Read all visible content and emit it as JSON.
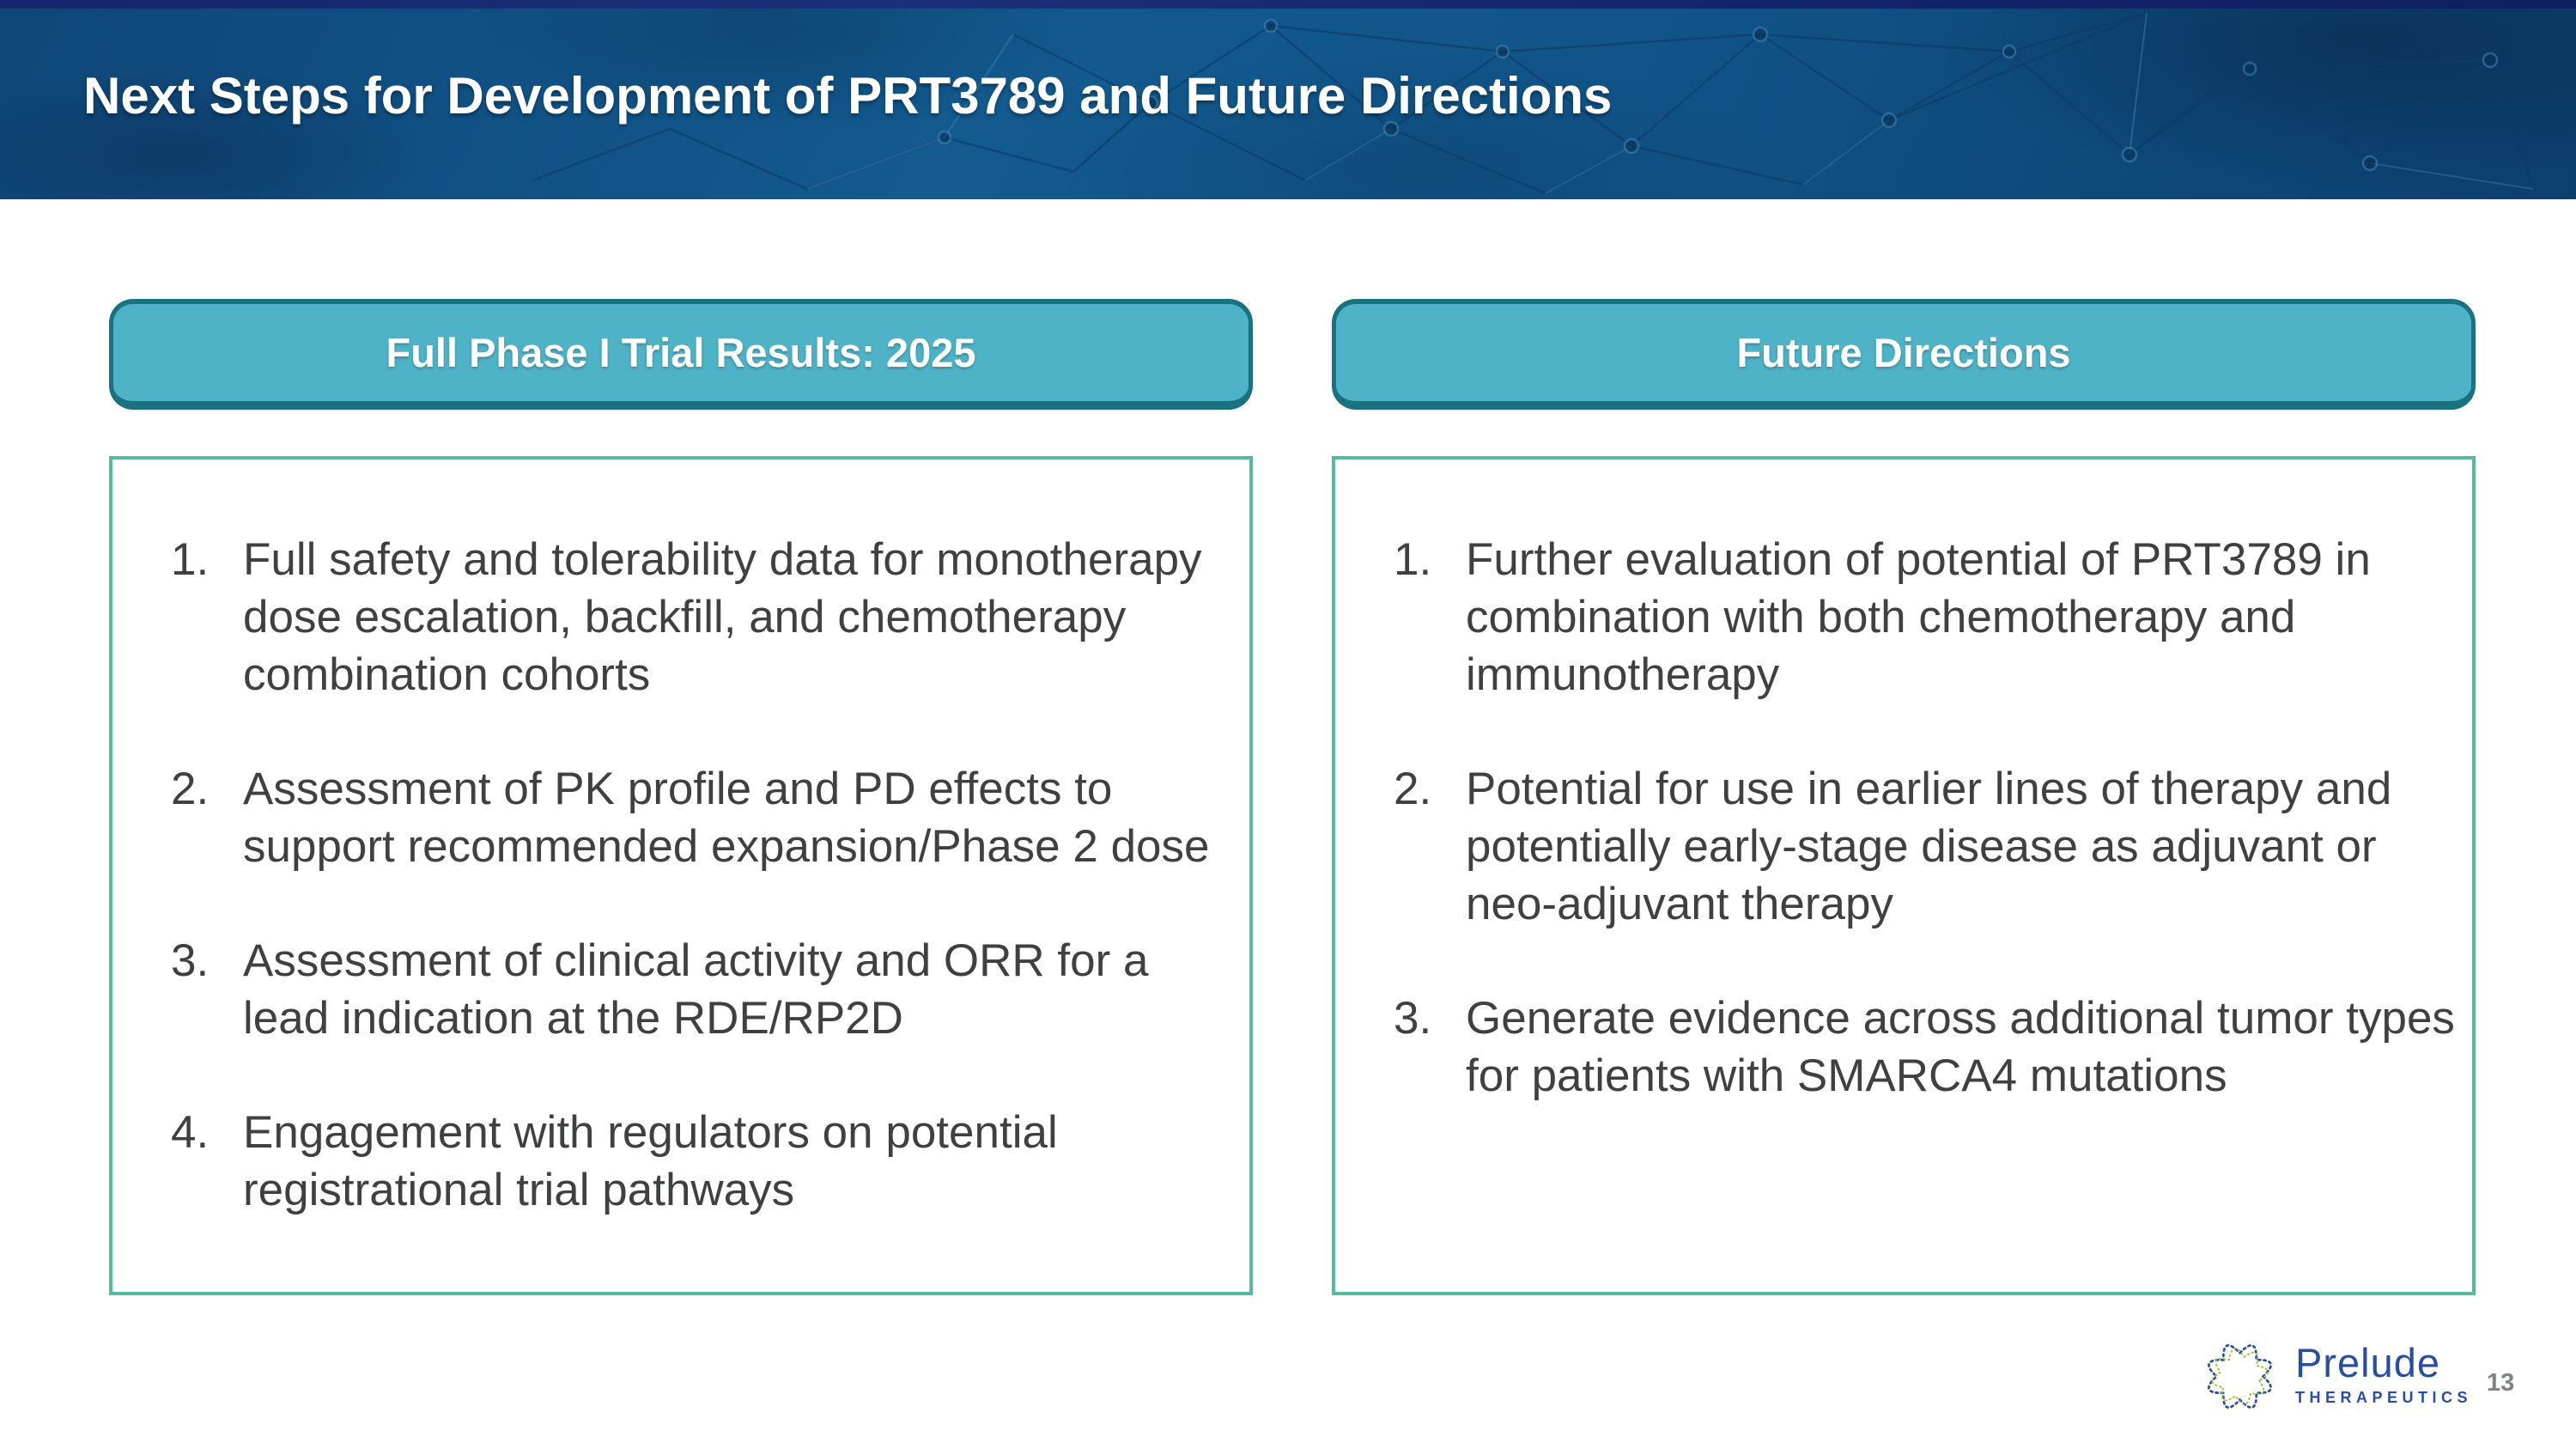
{
  "slide": {
    "title": "Next Steps for Development of PRT3789 and Future Directions",
    "page_number": "13"
  },
  "columns": [
    {
      "header": "Full Phase I Trial Results: 2025",
      "items": [
        "Full safety and tolerability data for monotherapy dose escalation, backfill, and chemotherapy combination cohorts",
        "Assessment of PK profile and PD effects to support recommended expansion/Phase 2 dose",
        "Assessment of clinical activity and ORR for a lead indication at the RDE/RP2D",
        "Engagement with regulators on potential registrational trial pathways"
      ]
    },
    {
      "header": "Future Directions",
      "items": [
        "Further evaluation of potential of PRT3789 in combination with both chemotherapy and immunotherapy",
        "Potential for use in earlier lines of therapy and potentially early-stage disease as adjuvant or neo-adjuvant therapy",
        "Generate evidence across additional tumor types for patients with SMARCA4 mutations"
      ]
    }
  ],
  "logo": {
    "name": "Prelude",
    "subtext": "THERAPEUTICS"
  },
  "colors": {
    "header_blue": "#135a8e",
    "top_strip_navy": "#16256b",
    "pill_fill": "#4fb3c7",
    "pill_border": "#1a7280",
    "box_border": "#57ba9d",
    "body_text": "#3f4041",
    "brand_blue": "#2a4e9e",
    "brand_green": "#9fbf3b",
    "page_number_gray": "#7f8285"
  }
}
